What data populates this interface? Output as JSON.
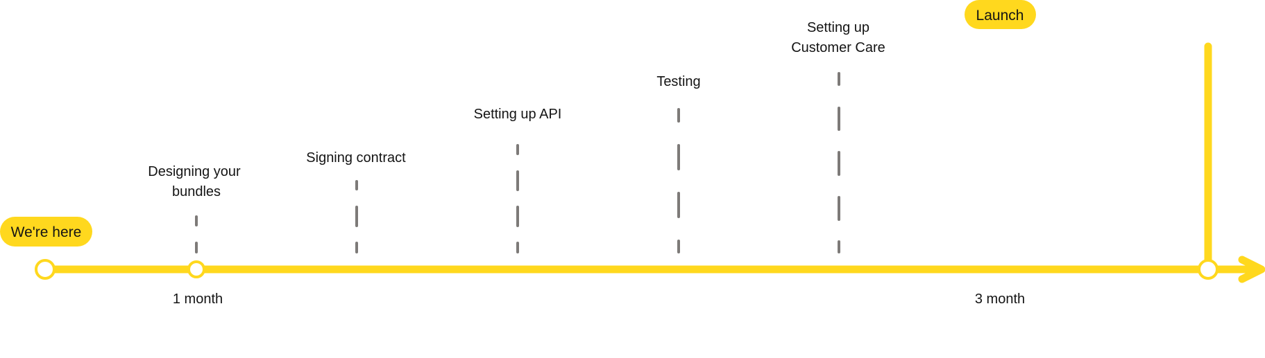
{
  "colors": {
    "accent": "#FFD81E",
    "dash": "#7D7A78",
    "text": "#141414"
  },
  "markers": {
    "start_pill": "We're here",
    "end_pill": "Launch"
  },
  "milestones": [
    {
      "lines": [
        "Designing your",
        "bundles"
      ]
    },
    {
      "lines": [
        "Signing contract"
      ]
    },
    {
      "lines": [
        "Setting up API"
      ]
    },
    {
      "lines": [
        "Testing"
      ]
    },
    {
      "lines": [
        "Setting up",
        "Customer Care"
      ]
    }
  ],
  "time_labels": [
    "1 month",
    "3 month"
  ]
}
